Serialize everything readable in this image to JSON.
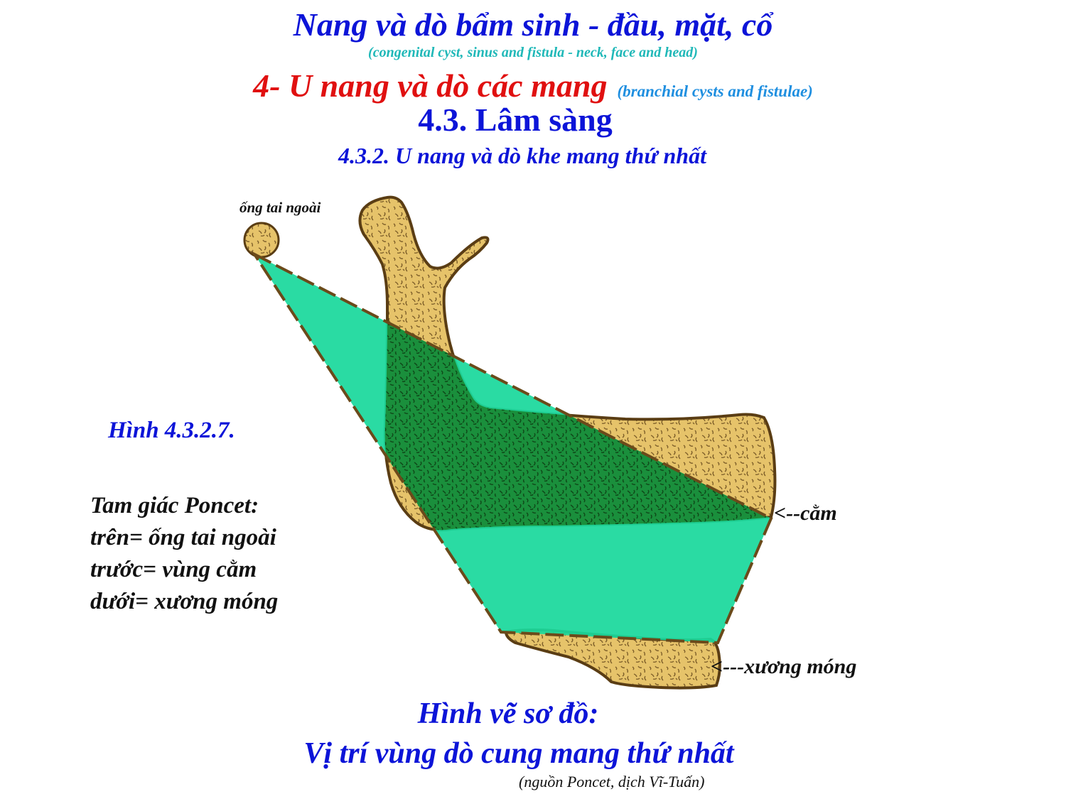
{
  "colors": {
    "title": "#0c14d8",
    "title_en": "#1fb8b8",
    "section": "#e01010",
    "section_en": "#1f8fe0",
    "label": "#111111",
    "bone_fill": "#e6c36a",
    "bone_edge": "#6b4a1a",
    "triangle_fill": "#1ad89c",
    "overlap_fill": "#1a8f3c"
  },
  "header": {
    "title": "Nang và dò bẩm sinh - đầu, mặt, cổ",
    "title_en": "(congenital cyst, sinus and fistula - neck, face and head)",
    "section_title": "4- U nang và dò các mang",
    "section_en": "(branchial cysts and fistulae)",
    "subsection": "4.3. Lâm sàng",
    "subsubsection": "4.3.2. U nang và dò khe mang thứ nhất"
  },
  "figure": {
    "number": "Hình 4.3.2.7.",
    "poncet": [
      " Tam giác Poncet:",
      "trên= ống tai ngoài",
      "trước= vùng cằm",
      "dưới= xương móng"
    ],
    "labels": {
      "ear_canal": "ống tai ngoài",
      "chin": "<--cằm",
      "hyoid": "<---xương móng"
    },
    "icons": {
      "ear": "ear-canal-circle",
      "mandible": "mandible-shape",
      "hyoid": "hyoid-bone-shape",
      "triangle": "poncet-triangle"
    }
  },
  "footer": {
    "diagram_title": "Hình vẽ sơ đồ:",
    "diagram_subtitle": "Vị trí vùng dò cung mang thứ nhất",
    "source": "(nguồn  Poncet, dịch Vĩ-Tuấn)"
  }
}
